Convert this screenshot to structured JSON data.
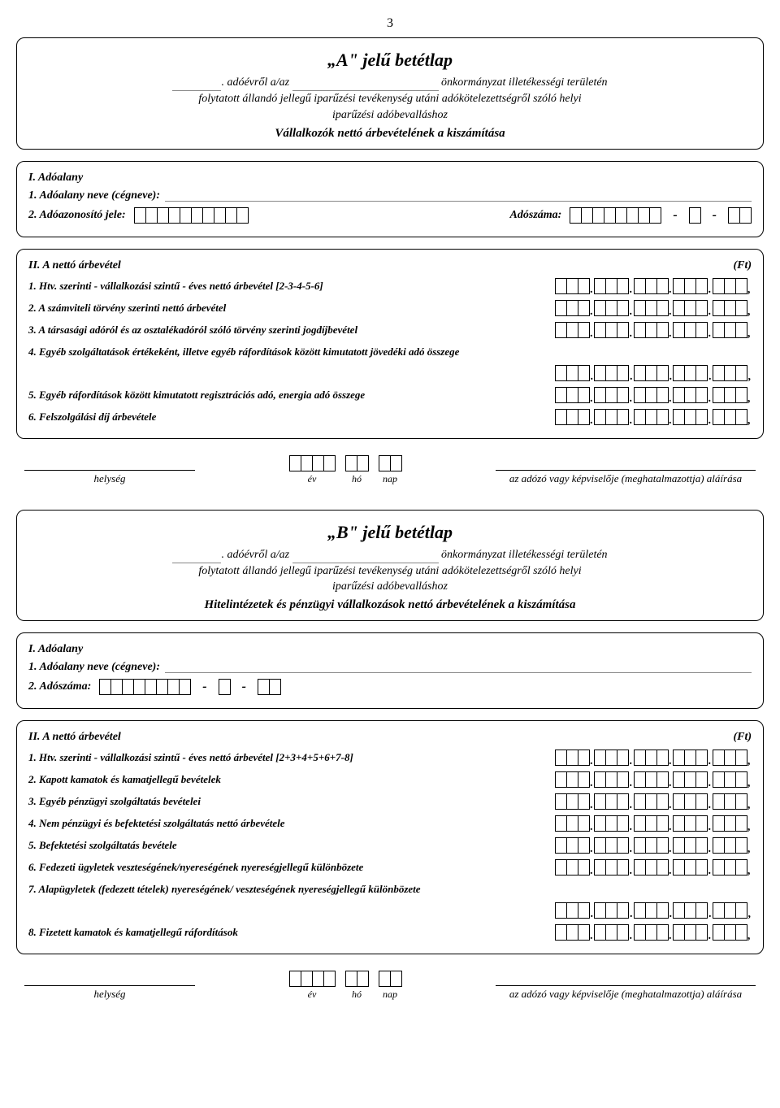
{
  "page_number": "3",
  "formA": {
    "title": "„A\" jelű betétlap",
    "lead_blank_suffix": ". adóévről a/az",
    "lead_rest": " önkormányzat illetékességi területén",
    "line2": "folytatott állandó jellegű iparűzési tevékenység utáni adókötelezettségről szóló helyi",
    "line3": "iparűzési adóbevalláshoz",
    "subtitle": "Vállalkozók nettó árbevételének a kiszámítása",
    "section1_head": "I. Adóalany",
    "name_label": "1. Adóalany neve (cégneve):",
    "adoazon_label": "2. Adóazonosító jele:",
    "adoszam_label": "Adószáma:",
    "section2_head": "II. A nettó árbevétel",
    "ft": "(Ft)",
    "rows": [
      "1. Htv. szerinti - vállalkozási szintű - éves nettó árbevétel [2-3-4-5-6]",
      "2. A számviteli törvény szerinti nettó árbevétel",
      "3. A társasági adóról és az osztalékadóról szóló törvény szerinti jogdíjbevétel",
      "4. Egyéb szolgáltatások értékeként, illetve egyéb ráfordítások között kimutatott jövedéki adó összege",
      "5. Egyéb ráfordítások között kimutatott regisztrációs adó, energia adó összege",
      "6. Felszolgálási díj árbevétele"
    ]
  },
  "sig": {
    "helyseg": "helység",
    "ev": "év",
    "ho": "hó",
    "nap": "nap",
    "right": "az adózó vagy képviselője (meghatalmazottja) aláírása"
  },
  "formB": {
    "title": "„B\" jelű betétlap",
    "lead_blank_suffix": ". adóévről a/az",
    "lead_rest": " önkormányzat illetékességi területén",
    "line2": "folytatott állandó jellegű iparűzési tevékenység utáni adókötelezettségről szóló helyi",
    "line3": "iparűzési adóbevalláshoz",
    "subtitle": "Hitelintézetek és pénzügyi vállalkozások nettó árbevételének a kiszámítása",
    "section1_head": "I. Adóalany",
    "name_label": "1. Adóalany neve (cégneve):",
    "adoszam_label": "2. Adószáma:",
    "section2_head": "II. A nettó árbevétel",
    "ft": "(Ft)",
    "rows": [
      "1. Htv. szerinti - vállalkozási szintű - éves nettó árbevétel [2+3+4+5+6+7-8]",
      "2. Kapott kamatok és kamatjellegű bevételek",
      "3. Egyéb pénzügyi szolgáltatás bevételei",
      "4. Nem pénzügyi és befektetési szolgáltatás nettó árbevétele",
      "5. Befektetési szolgáltatás bevétele",
      "6. Fedezeti ügyletek veszteségének/nyereségének nyereségjellegű különbözete",
      "7. Alapügyletek (fedezett tételek) nyereségének/ veszteségének nyereségjellegű különbözete",
      "8. Fizetett kamatok és kamatjellegű ráfordítások"
    ]
  },
  "numfield": {
    "groups": 5,
    "digits_per_group": 3
  }
}
